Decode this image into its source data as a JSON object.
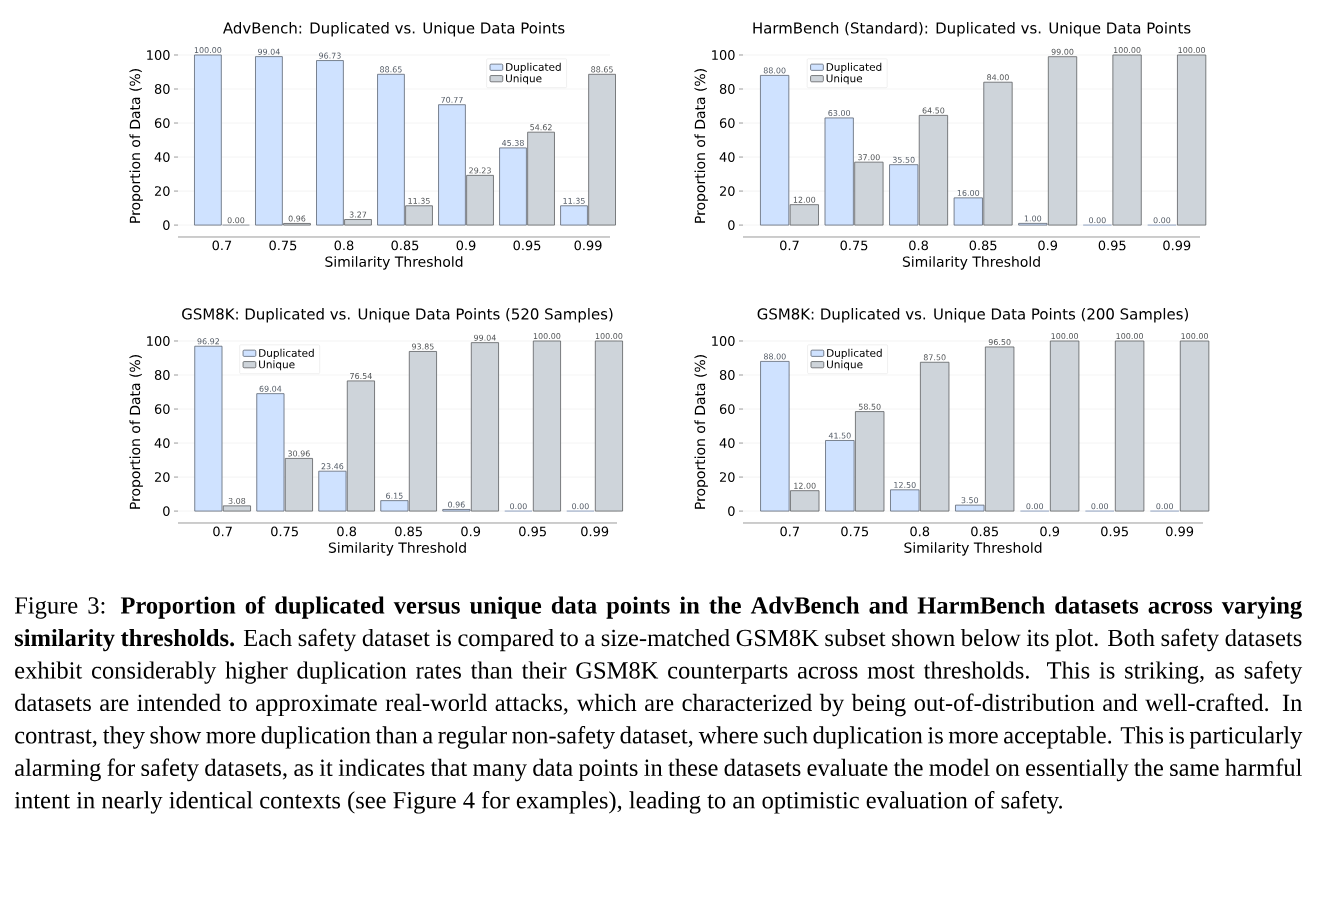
{
  "chart_data": [
    {
      "type": "bar",
      "title": "AdvBench: Duplicated vs. Unique Data Points",
      "xlabel": "Similarity Threshold",
      "ylabel": "Proportion of Data (%)",
      "categories": [
        "0.7",
        "0.75",
        "0.8",
        "0.85",
        "0.9",
        "0.95",
        "0.99"
      ],
      "series": [
        {
          "name": "Duplicated",
          "color": "#cfe2ff",
          "values": [
            100.0,
            99.04,
            96.73,
            88.65,
            70.77,
            45.38,
            11.35
          ],
          "value_labels": [
            "100.00",
            "99.04",
            "96.73",
            "88.65",
            "70.77",
            "45.38",
            "11.35"
          ]
        },
        {
          "name": "Unique",
          "color": "#ced4da",
          "values": [
            0.0,
            0.96,
            3.27,
            11.35,
            29.23,
            54.62,
            88.65
          ],
          "value_labels": [
            "0.00",
            "0.96",
            "3.27",
            "11.35",
            "29.23",
            "54.62",
            "88.65"
          ]
        }
      ],
      "ylim": [
        -7,
        100
      ],
      "yticks": [
        0,
        20,
        40,
        60,
        80,
        100
      ],
      "grid": "y",
      "legend": "top right"
    },
    {
      "type": "bar",
      "title": "HarmBench (Standard): Duplicated vs. Unique Data Points",
      "xlabel": "Similarity Threshold",
      "ylabel": "Proportion of Data (%)",
      "categories": [
        "0.7",
        "0.75",
        "0.8",
        "0.85",
        "0.9",
        "0.95",
        "0.99"
      ],
      "series": [
        {
          "name": "Duplicated",
          "color": "#cfe2ff",
          "values": [
            88.0,
            63.0,
            35.5,
            16.0,
            1.0,
            0.0,
            0.0
          ],
          "value_labels": [
            "88.00",
            "63.00",
            "35.50",
            "16.00",
            "1.00",
            "0.00",
            "0.00"
          ]
        },
        {
          "name": "Unique",
          "color": "#ced4da",
          "values": [
            12.0,
            37.0,
            64.5,
            84.0,
            99.0,
            100.0,
            100.0
          ],
          "value_labels": [
            "12.00",
            "37.00",
            "64.50",
            "84.00",
            "99.00",
            "100.00",
            "100.00"
          ]
        }
      ],
      "ylim": [
        -7,
        100
      ],
      "yticks": [
        0,
        20,
        40,
        60,
        80,
        100
      ],
      "grid": "y",
      "legend": "top left"
    },
    {
      "type": "bar",
      "title": "GSM8K: Duplicated vs. Unique Data Points (520 Samples)",
      "xlabel": "Similarity Threshold",
      "ylabel": "Proportion of Data (%)",
      "categories": [
        "0.7",
        "0.75",
        "0.8",
        "0.85",
        "0.9",
        "0.95",
        "0.99"
      ],
      "series": [
        {
          "name": "Duplicated",
          "color": "#cfe2ff",
          "values": [
            96.92,
            69.04,
            23.46,
            6.15,
            0.96,
            0.0,
            0.0
          ],
          "value_labels": [
            "96.92",
            "69.04",
            "23.46",
            "6.15",
            "0.96",
            "0.00",
            "0.00"
          ]
        },
        {
          "name": "Unique",
          "color": "#ced4da",
          "values": [
            3.08,
            30.96,
            76.54,
            93.85,
            99.04,
            100.0,
            100.0
          ],
          "value_labels": [
            "3.08",
            "30.96",
            "76.54",
            "93.85",
            "99.04",
            "100.00",
            "100.00"
          ]
        }
      ],
      "ylim": [
        -7,
        100
      ],
      "yticks": [
        0,
        20,
        40,
        60,
        80,
        100
      ],
      "grid": "y",
      "legend": "top left"
    },
    {
      "type": "bar",
      "title": "GSM8K: Duplicated vs. Unique Data Points (200 Samples)",
      "xlabel": "Similarity Threshold",
      "ylabel": "Proportion of Data (%)",
      "categories": [
        "0.7",
        "0.75",
        "0.8",
        "0.85",
        "0.9",
        "0.95",
        "0.99"
      ],
      "series": [
        {
          "name": "Duplicated",
          "color": "#cfe2ff",
          "values": [
            88.0,
            41.5,
            12.5,
            3.5,
            0.0,
            0.0,
            0.0
          ],
          "value_labels": [
            "88.00",
            "41.50",
            "12.50",
            "3.50",
            "0.00",
            "0.00",
            "0.00"
          ]
        },
        {
          "name": "Unique",
          "color": "#ced4da",
          "values": [
            12.0,
            58.5,
            87.5,
            96.5,
            100.0,
            100.0,
            100.0
          ],
          "value_labels": [
            "12.00",
            "58.50",
            "87.50",
            "96.50",
            "100.00",
            "100.00",
            "100.00"
          ]
        }
      ],
      "ylim": [
        -7,
        100
      ],
      "yticks": [
        0,
        20,
        40,
        60,
        80,
        100
      ],
      "grid": "y",
      "legend": "top left"
    },
    {
      "type": "other",
      "annotations": [
        "Figure 3: **Proportion of duplicated versus unique data points in the AdvBench and HarmBench datasets across varying similarity thresholds.** Each safety dataset is compared to a size-matched GSM8K subset shown below its plot. Both safety datasets exhibit considerably higher duplication rates than their GSM8K counterparts across most thresholds. This is striking, as safety datasets are intended to approximate real-world attacks, which are characterized by being out-of-distribution and well-crafted. In contrast, they show more duplication than a regular non-safety dataset, where such duplication is more acceptable. This is particularly alarming for safety datasets, as it indicates that many data points in these datasets evaluate the model on essentially the same harmful intent in nearly identical contexts (see Figure 4 for examples), leading to an optimistic evaluation of safety."
      ]
    }
  ]
}
